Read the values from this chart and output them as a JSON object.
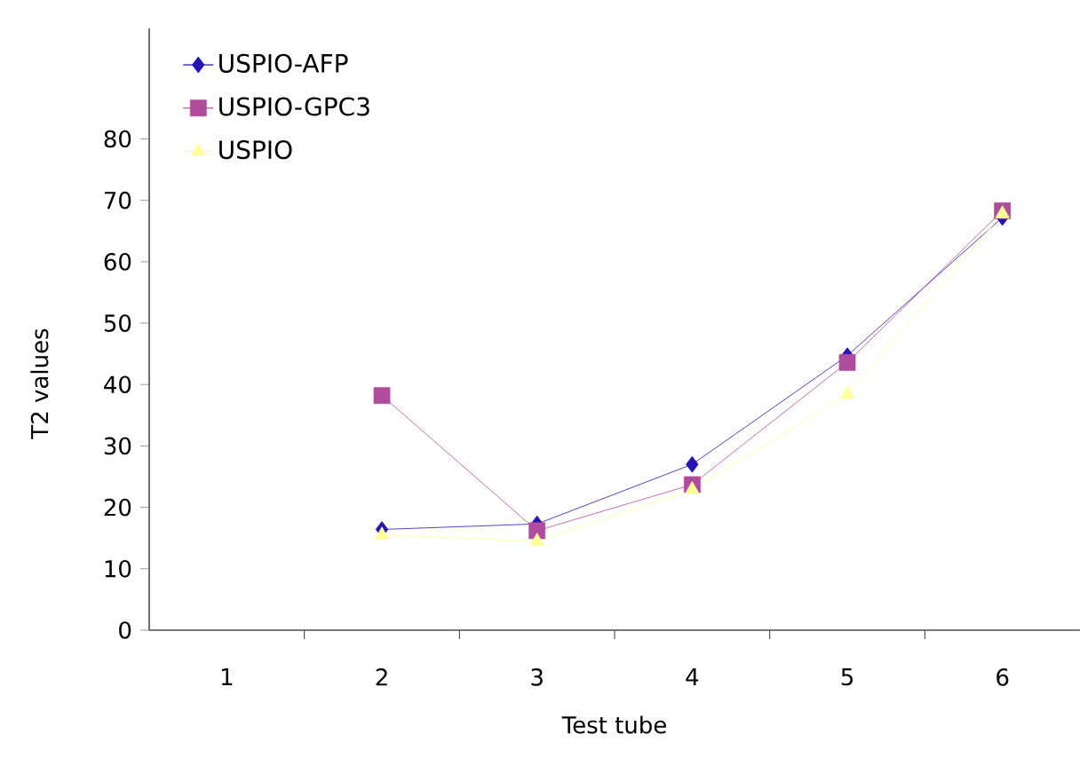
{
  "chart_data": {
    "type": "line",
    "xlabel": "Test tube",
    "ylabel": "T2 values",
    "categories": [
      "1",
      "2",
      "3",
      "4",
      "5",
      "6"
    ],
    "ylim": [
      0,
      98
    ],
    "yticks": [
      0,
      10,
      20,
      30,
      40,
      50,
      60,
      70,
      80
    ],
    "grid": false,
    "legend": "top left",
    "series": [
      {
        "name": "USPIO-AFP",
        "color": "#2614b4",
        "marker": "diamond",
        "values": [
          null,
          16.4,
          17.3,
          27.0,
          44.7,
          67.2
        ]
      },
      {
        "name": "USPIO-GPC3",
        "color": "#b04c9c",
        "marker": "square",
        "values": [
          null,
          38.2,
          16.2,
          23.7,
          43.6,
          68.3
        ]
      },
      {
        "name": "USPIO",
        "color": "#ffff99",
        "marker": "triangle",
        "values": [
          null,
          15.5,
          14.5,
          22.9,
          38.4,
          67.8
        ]
      }
    ]
  }
}
